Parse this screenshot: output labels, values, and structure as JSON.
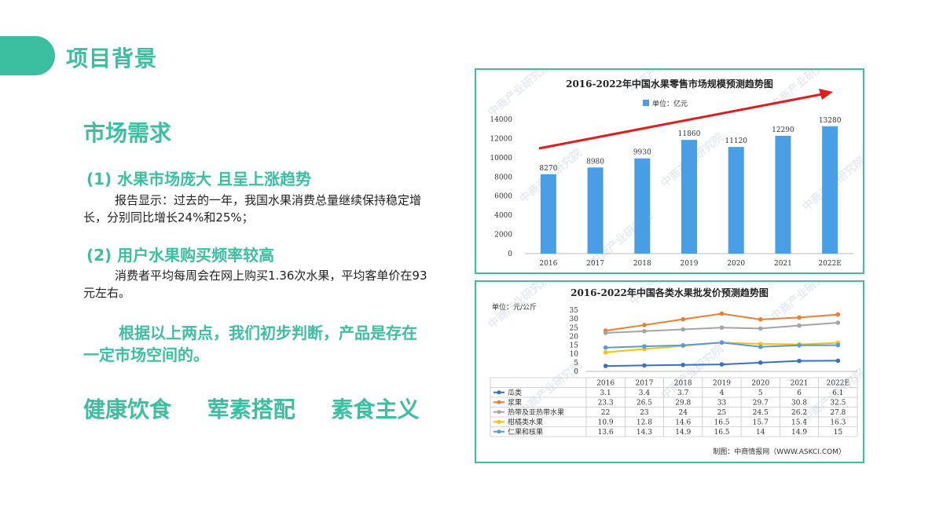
{
  "colors": {
    "accent": "#3cbfa1",
    "bar": "#4a9ee6",
    "arrow": "#e31b1b"
  },
  "page": {
    "title": "项目背景"
  },
  "left": {
    "section_title": "市场需求",
    "point1": {
      "title": "(1) 水果市场庞大 且呈上涨趋势",
      "text": "报告显示：过去的一年，我国水果消费总量继续保持稳定增长，分别同比增长24%和25%；"
    },
    "point2": {
      "title": "(2) 用户水果购买频率较高",
      "text": "消费者平均每周会在网上购买1.36次水果，平均客单价在93元左右。"
    },
    "conclusion": "根据以上两点，我们初步判断，产品是存在一定市场空间的。",
    "tags": [
      "健康饮食",
      "荤素搭配",
      "素食主义"
    ]
  },
  "watermark": "中商产业研究院",
  "chart_data": [
    {
      "type": "bar",
      "title": "2016-2022年中国水果零售市场规模预测趋势图",
      "legend": "单位：亿元",
      "categories": [
        "2016",
        "2017",
        "2018",
        "2019",
        "2020",
        "2021",
        "2022E"
      ],
      "values": [
        8270,
        8980,
        9930,
        11860,
        11120,
        12290,
        13280
      ],
      "value_labels": [
        "8270",
        "8980",
        "9930",
        "11860",
        "11120",
        "12290",
        "13280"
      ],
      "yticks": [
        "0",
        "2000",
        "4000",
        "6000",
        "8000",
        "10000",
        "12000",
        "14000"
      ],
      "ylim": [
        0,
        14000
      ],
      "annotation": "upward trend arrow",
      "legend_position": "top"
    },
    {
      "type": "line",
      "title": "2016-2022年中国各类水果批发价预测趋势图",
      "unit": "单位：元/公斤",
      "categories": [
        "2016",
        "2017",
        "2018",
        "2019",
        "2020",
        "2021",
        "2022E"
      ],
      "yticks": [
        "0",
        "5",
        "10",
        "15",
        "20",
        "25",
        "30",
        "35"
      ],
      "ylim": [
        0,
        35
      ],
      "series": [
        {
          "name": "瓜类",
          "color": "#3a6fc4",
          "values": [
            3.1,
            3.4,
            3.7,
            4,
            5,
            6,
            6.1
          ],
          "labels": [
            "3.1",
            "3.4",
            "3.7",
            "4",
            "5",
            "6",
            "6.1"
          ]
        },
        {
          "name": "浆果",
          "color": "#ed7d31",
          "values": [
            23.3,
            26.5,
            29.8,
            33,
            29.7,
            30.8,
            32.5
          ],
          "labels": [
            "23.3",
            "26.5",
            "29.8",
            "33",
            "29.7",
            "30.8",
            "32.5"
          ]
        },
        {
          "name": "热带及亚热带水果",
          "color": "#a5a5a5",
          "values": [
            22,
            23,
            24,
            25,
            24.5,
            26.2,
            27.8
          ],
          "labels": [
            "22",
            "23",
            "24",
            "25",
            "24.5",
            "26.2",
            "27.8"
          ]
        },
        {
          "name": "柑橘类水果",
          "color": "#f5c018",
          "values": [
            10.9,
            12.8,
            14.6,
            16.5,
            15.7,
            15.4,
            16.3
          ],
          "labels": [
            "10.9",
            "12.8",
            "14.6",
            "16.5",
            "15.7",
            "15.4",
            "16.3"
          ]
        },
        {
          "name": "仁果和核果",
          "color": "#5b9bd5",
          "values": [
            13.6,
            14.3,
            14.9,
            16.5,
            14,
            14.9,
            15
          ],
          "labels": [
            "13.6",
            "14.3",
            "14.9",
            "16.5",
            "14",
            "14.9",
            "15"
          ]
        }
      ],
      "source": "制图：中商情报网（WWW.ASKCI.COM）",
      "data_table": true
    }
  ]
}
